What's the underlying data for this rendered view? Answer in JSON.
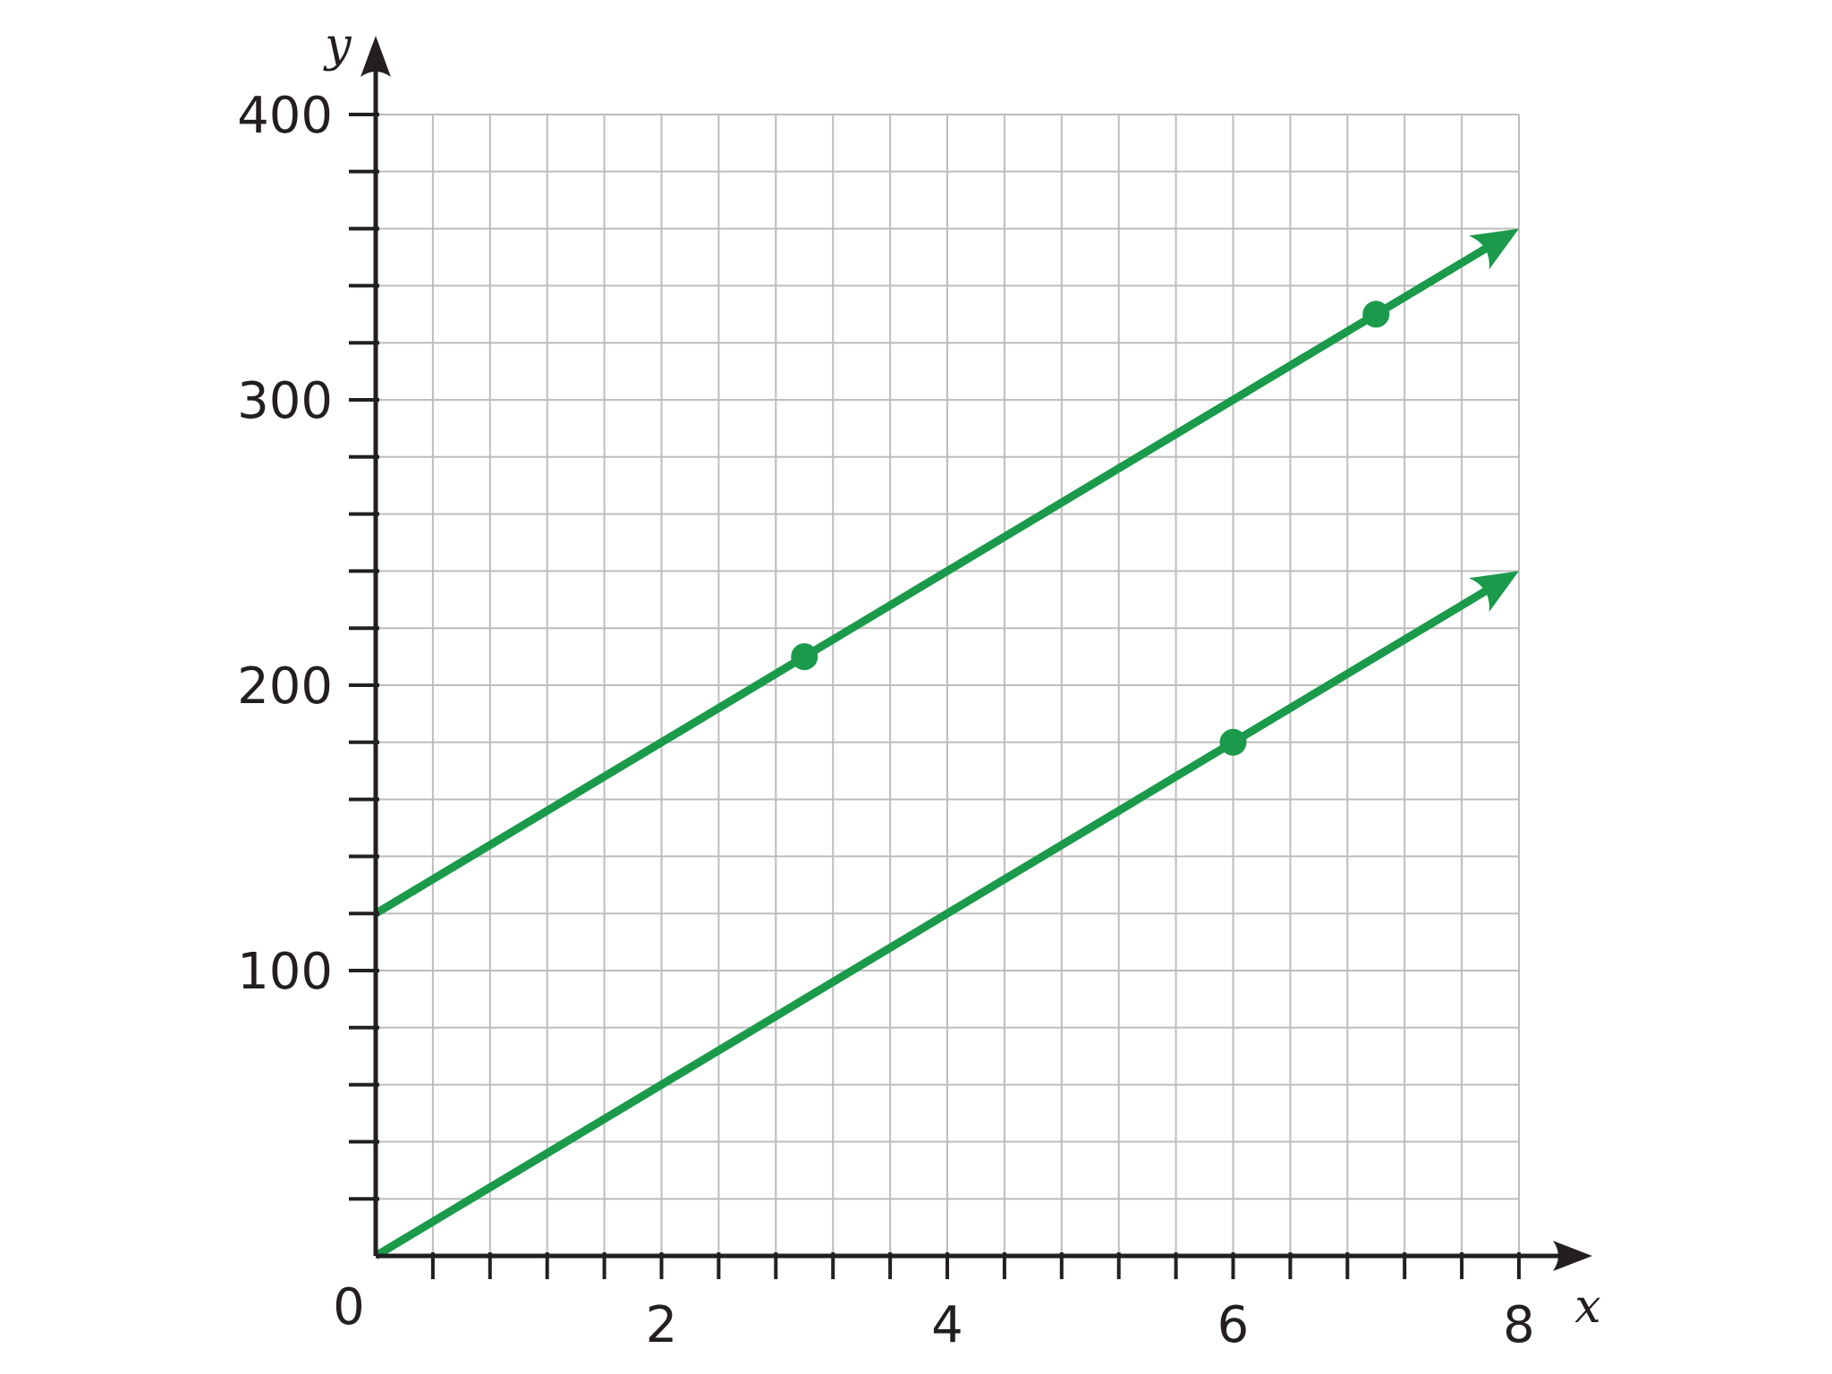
{
  "chart_data": {
    "type": "line",
    "title": "",
    "xlabel": "x",
    "ylabel": "y",
    "origin_label": "0",
    "xlim": [
      0,
      8
    ],
    "ylim": [
      0,
      400
    ],
    "x_major_ticks": [
      2,
      4,
      6,
      8
    ],
    "x_tick_labels": [
      "2",
      "4",
      "6",
      "8"
    ],
    "y_major_ticks": [
      100,
      200,
      300,
      400
    ],
    "y_tick_labels": [
      "100",
      "200",
      "300",
      "400"
    ],
    "x_minor_step": 0.4,
    "y_minor_step": 20,
    "grid": true,
    "line_color": "#1a9a4a",
    "grid_color": "#bdbdbd",
    "axis_color": "#231f20",
    "series": [
      {
        "x": [
          0,
          8
        ],
        "y": [
          120,
          360
        ],
        "points": [
          {
            "x": 3,
            "y": 210
          },
          {
            "x": 7,
            "y": 330
          }
        ],
        "arrow_end": true
      },
      {
        "x": [
          0,
          8
        ],
        "y": [
          0,
          240
        ],
        "points": [
          {
            "x": 6,
            "y": 180
          }
        ],
        "arrow_end": true
      }
    ]
  }
}
